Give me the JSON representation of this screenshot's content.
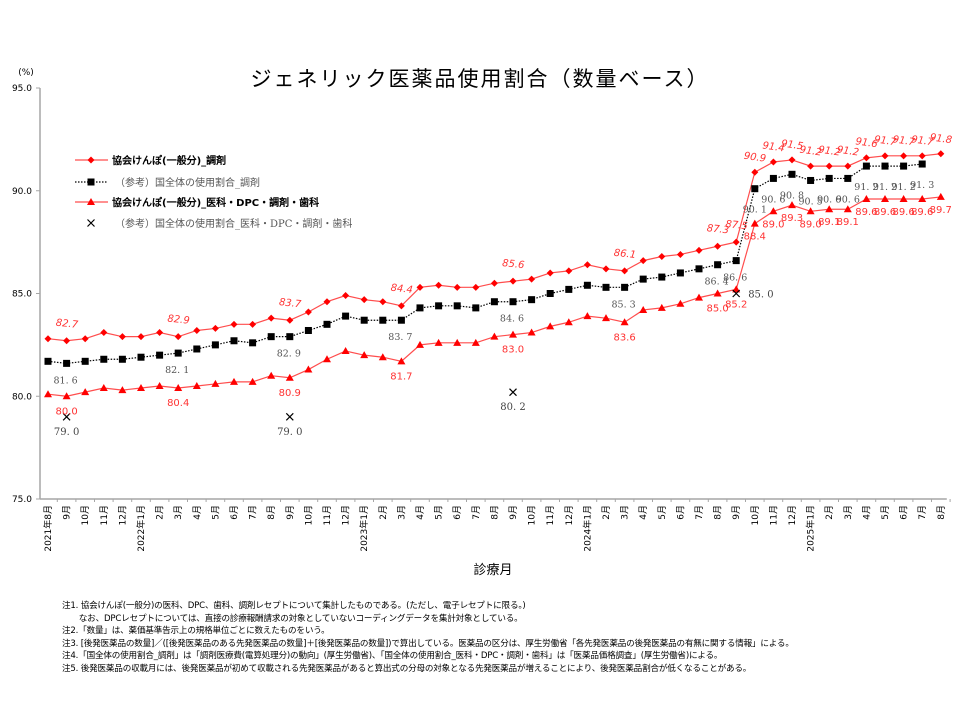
{
  "chart_data": {
    "type": "line",
    "title": "ジェネリック医薬品使用割合（数量ベース）",
    "ylabel": "(%)",
    "xlabel": "診療月",
    "ylim": [
      75.0,
      95.0
    ],
    "yticks": [
      "75.0",
      "80.0",
      "85.0",
      "90.0",
      "95.0"
    ],
    "grid": false,
    "legend_placement": "upper-left",
    "categories": [
      "2021年8月",
      "9月",
      "10月",
      "11月",
      "12月",
      "2022年1月",
      "2月",
      "3月",
      "4月",
      "5月",
      "6月",
      "7月",
      "8月",
      "9月",
      "10月",
      "11月",
      "12月",
      "2023年1月",
      "2月",
      "3月",
      "4月",
      "5月",
      "6月",
      "7月",
      "8月",
      "9月",
      "10月",
      "11月",
      "12月",
      "2024年1月",
      "2月",
      "3月",
      "4月",
      "5月",
      "6月",
      "7月",
      "8月",
      "9月",
      "10月",
      "11月",
      "12月",
      "2025年1月",
      "2月",
      "3月",
      "4月",
      "5月",
      "6月",
      "7月",
      "8月"
    ],
    "series": [
      {
        "name": "協会けんぽ(一般分)_調剤",
        "color": "#ff0000",
        "marker": "diamond",
        "line": "solid",
        "values": [
          82.8,
          82.7,
          82.8,
          83.1,
          82.9,
          82.9,
          83.1,
          82.9,
          83.2,
          83.3,
          83.5,
          83.5,
          83.8,
          83.7,
          84.1,
          84.6,
          84.9,
          84.7,
          84.6,
          84.4,
          85.3,
          85.4,
          85.3,
          85.3,
          85.5,
          85.6,
          85.7,
          86.0,
          86.1,
          86.4,
          86.2,
          86.1,
          86.6,
          86.8,
          86.9,
          87.1,
          87.3,
          87.5,
          90.9,
          91.4,
          91.5,
          91.2,
          91.2,
          91.2,
          91.6,
          91.7,
          91.7,
          91.7,
          91.8
        ],
        "labeled_indices": [
          1,
          7,
          13,
          19,
          25,
          31,
          36,
          37,
          38,
          39,
          40,
          41,
          42,
          43,
          44,
          45,
          46,
          47,
          48
        ]
      },
      {
        "name": "（参考）国全体の使用割合_調剤",
        "color": "#000000",
        "marker": "square",
        "line": "dotted",
        "values": [
          81.7,
          81.6,
          81.7,
          81.8,
          81.8,
          81.9,
          82.0,
          82.1,
          82.3,
          82.5,
          82.7,
          82.6,
          82.9,
          82.9,
          83.2,
          83.5,
          83.9,
          83.7,
          83.7,
          83.7,
          84.3,
          84.4,
          84.4,
          84.3,
          84.6,
          84.6,
          84.7,
          85.0,
          85.2,
          85.4,
          85.3,
          85.3,
          85.7,
          85.8,
          86.0,
          86.2,
          86.4,
          86.6,
          90.1,
          90.6,
          90.8,
          90.5,
          90.6,
          90.6,
          91.2,
          91.2,
          91.2,
          91.3,
          null
        ],
        "labeled_indices": [
          1,
          7,
          13,
          19,
          25,
          31,
          36,
          37,
          38,
          39,
          40,
          41,
          42,
          43,
          44,
          45,
          46,
          47
        ]
      },
      {
        "name": "協会けんぽ(一般分)_医科・DPC・調剤・歯科",
        "color": "#ff0000",
        "marker": "triangle",
        "line": "solid",
        "values": [
          80.1,
          80.0,
          80.2,
          80.4,
          80.3,
          80.4,
          80.5,
          80.4,
          80.5,
          80.6,
          80.7,
          80.7,
          81.0,
          80.9,
          81.3,
          81.8,
          82.2,
          82.0,
          81.9,
          81.7,
          82.5,
          82.6,
          82.6,
          82.6,
          82.9,
          83.0,
          83.1,
          83.4,
          83.6,
          83.9,
          83.8,
          83.6,
          84.2,
          84.3,
          84.5,
          84.8,
          85.0,
          85.2,
          88.4,
          89.0,
          89.3,
          89.0,
          89.1,
          89.1,
          89.6,
          89.6,
          89.6,
          89.6,
          89.7
        ],
        "labeled_indices": [
          1,
          7,
          13,
          19,
          25,
          31,
          36,
          37,
          38,
          39,
          40,
          41,
          42,
          43,
          44,
          45,
          46,
          47,
          48
        ]
      },
      {
        "name": "（参考）国全体の使用割合_医科・DPC・調剤・歯科",
        "color": "#000000",
        "marker": "x",
        "line": "none",
        "values": [
          null,
          79.0,
          null,
          null,
          null,
          null,
          null,
          null,
          null,
          null,
          null,
          null,
          null,
          79.0,
          null,
          null,
          null,
          null,
          null,
          null,
          null,
          null,
          null,
          null,
          null,
          80.2,
          null,
          null,
          null,
          null,
          null,
          null,
          null,
          null,
          null,
          null,
          null,
          85.0,
          null,
          null,
          null,
          null,
          null,
          null,
          null,
          null,
          null,
          null,
          null
        ],
        "labeled_indices": [
          1,
          13,
          25,
          37
        ]
      }
    ]
  },
  "notes": [
    "注1. 協会けんぽ(一般分)の医科、DPC、歯科、調剤レセプトについて集計したものである。(ただし、電子レセプトに限る。)",
    "　　なお、DPCレセプトについては、直接の診療報酬請求の対象としていないコーディングデータを集計対象としている。",
    "注2.「数量」は、薬価基準告示上の規格単位ごとに数えたものをいう。",
    "注3. [後発医薬品の数量]／([後発医薬品のある先発医薬品の数量]＋[後発医薬品の数量])で算出している。医薬品の区分は、厚生労働省「各先発医薬品の後発医薬品の有無に関する情報」による。",
    "注4.「国全体の使用割合_調剤」は「調剤医療費(電算処理分)の動向」(厚生労働省)、「国全体の使用割合_医科・DPC・調剤・歯科」は「医薬品価格調査」(厚生労働省)による。",
    "注5. 後発医薬品の収載月には、後発医薬品が初めて収載される先発医薬品があると算出式の分母の対象となる先発医薬品が増えることにより、後発医薬品割合が低くなることがある。"
  ]
}
